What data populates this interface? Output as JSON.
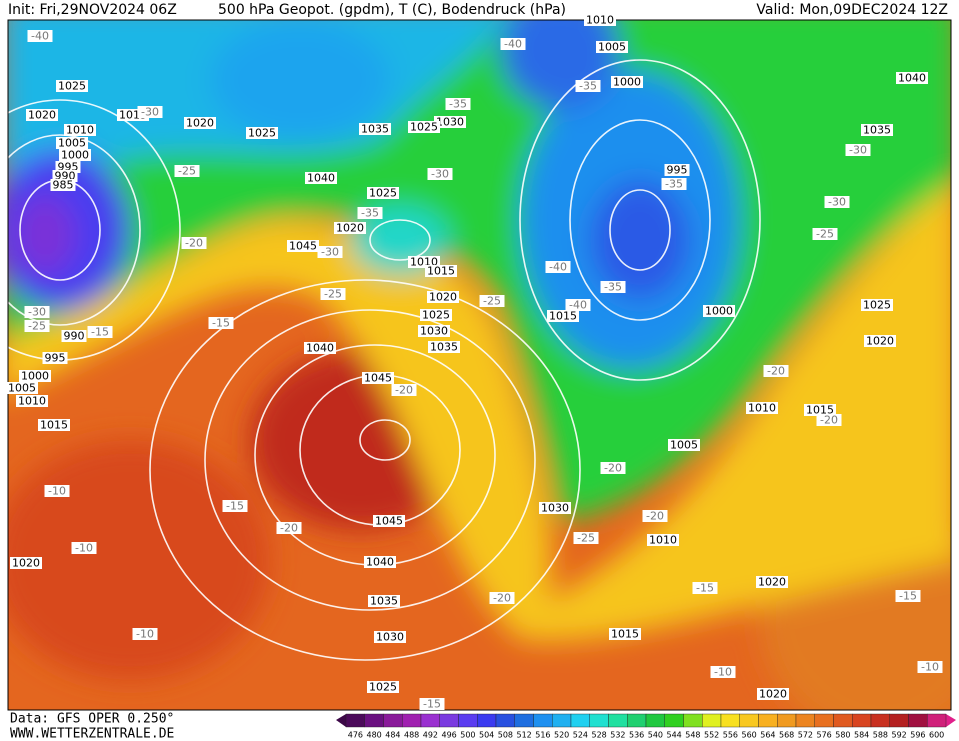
{
  "header": {
    "init": "Init: Fri,29NOV2024 06Z",
    "title": "500 hPa Geopot. (gpdm), T (C), Bodendruck (hPa)",
    "valid": "Valid: Mon,09DEC2024 12Z"
  },
  "footer": {
    "data": "Data: GFS OPER 0.250°",
    "website": "WWW.WETTERZENTRALE.DE"
  },
  "colorbar": {
    "labels": [
      476,
      480,
      484,
      488,
      492,
      496,
      500,
      504,
      508,
      512,
      516,
      520,
      524,
      528,
      532,
      536,
      540,
      544,
      548,
      552,
      556,
      560,
      564,
      568,
      572,
      576,
      580,
      584,
      588,
      592,
      596,
      600
    ]
  },
  "map": {
    "labels": [
      "1025",
      "1020",
      "1010",
      "1005",
      "1000",
      "995",
      "990",
      "985",
      "1015",
      "1020",
      "1025",
      "1040",
      "1035",
      "1030",
      "1025",
      "1025",
      "1020",
      "1010",
      "1015",
      "1020",
      "1025",
      "1030",
      "1035",
      "1045",
      "1040",
      "1045",
      "1045",
      "1040",
      "1035",
      "1030",
      "1025",
      "1030",
      "1010",
      "1015",
      "1020",
      "1020",
      "1005",
      "1010",
      "1015",
      "1000",
      "1015",
      "995",
      "1000",
      "1005",
      "1010",
      "1040",
      "1035",
      "1025",
      "1020",
      "990",
      "995",
      "1000",
      "1005",
      "1010",
      "1015",
      "1020",
      "-10",
      "-10",
      "-10",
      "-15",
      "-20",
      "-15",
      "-20",
      "-25",
      "-25",
      "-30",
      "-35",
      "-30",
      "-35",
      "-40",
      "-35",
      "-35",
      "-35",
      "-40",
      "-40",
      "-25",
      "-20",
      "-20",
      "-20",
      "-25",
      "-20",
      "-15",
      "-15",
      "-10",
      "-10",
      "-15",
      "-25",
      "-30",
      "-30",
      "-20",
      "-20",
      "-30",
      "-25",
      "-15",
      "-40",
      "-30"
    ]
  }
}
